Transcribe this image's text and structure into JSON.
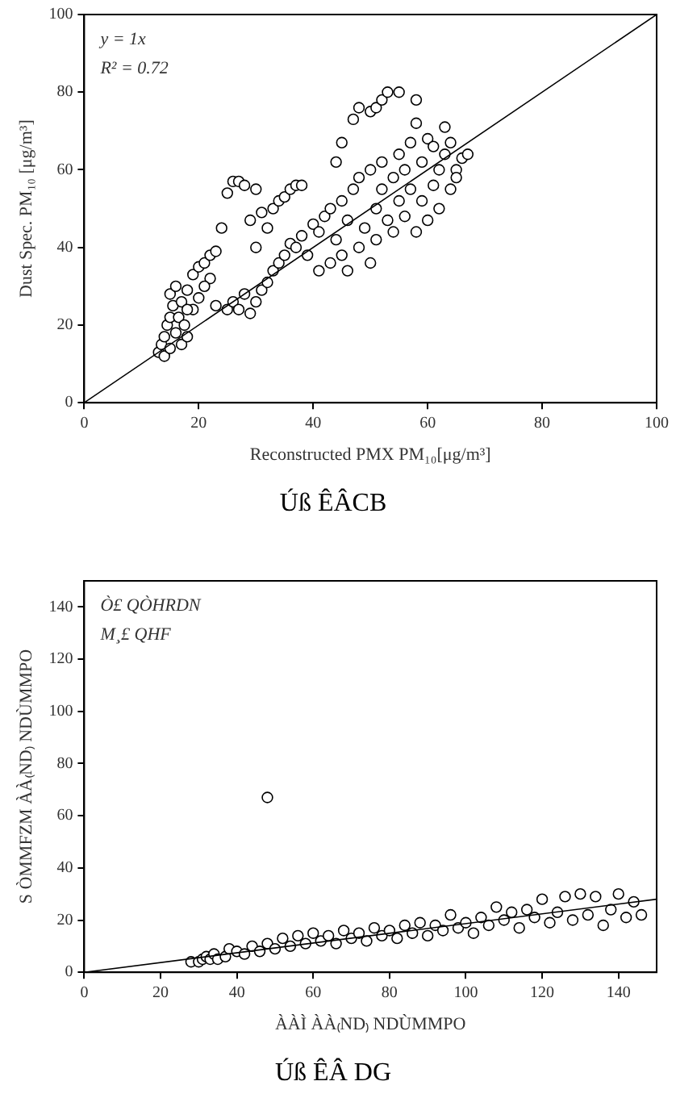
{
  "chart_data": [
    {
      "type": "scatter",
      "title": "Úß ÊÂCB",
      "xlabel": "Reconstructed PMX PM₁₀[μg/m³]",
      "ylabel": "Dust Spec. PM₁₀ [μg/m³]",
      "annotations": [
        "y = 1x",
        "R² = 0.72"
      ],
      "xlim": [
        0,
        100
      ],
      "ylim": [
        0,
        100
      ],
      "xticks": [
        0,
        20,
        40,
        60,
        80,
        100
      ],
      "yticks": [
        0,
        20,
        40,
        60,
        80,
        100
      ],
      "grid": false,
      "legend": false,
      "marker": "circle",
      "series": [
        {
          "type": "scatter",
          "color": "#000000",
          "x": [
            13,
            13.5,
            14,
            14,
            14.5,
            15,
            15,
            15.5,
            15,
            16,
            16,
            16.5,
            17,
            17,
            17.5,
            18,
            18,
            19,
            19,
            20,
            21,
            22,
            23,
            22,
            21,
            20,
            18,
            23,
            25,
            26,
            27,
            28,
            29,
            30,
            31,
            32,
            33,
            34,
            35,
            36,
            37,
            38,
            39,
            40,
            41,
            41,
            42,
            43,
            43,
            44,
            45,
            45,
            46,
            46,
            47,
            48,
            48,
            49,
            50,
            50,
            51,
            51,
            52,
            52,
            53,
            54,
            54,
            55,
            55,
            56,
            56,
            57,
            57,
            58,
            58,
            59,
            59,
            60,
            60,
            61,
            62,
            62,
            63,
            63,
            64,
            64,
            65,
            66,
            67,
            65,
            61,
            24,
            25,
            26,
            27,
            28,
            29,
            30,
            30,
            31,
            32,
            33,
            34,
            35,
            36,
            37,
            38,
            44,
            45,
            47,
            48,
            50,
            51,
            52,
            53,
            55,
            58
          ],
          "values": [
            13,
            15,
            12,
            17,
            20,
            14,
            22,
            25,
            28,
            30,
            18,
            22,
            15,
            26,
            20,
            17,
            29,
            24,
            33,
            35,
            36,
            38,
            39,
            32,
            30,
            27,
            24,
            25,
            24,
            26,
            24,
            28,
            23,
            26,
            29,
            31,
            34,
            36,
            38,
            41,
            40,
            43,
            38,
            46,
            44,
            34,
            48,
            36,
            50,
            42,
            38,
            52,
            34,
            47,
            55,
            40,
            58,
            45,
            36,
            60,
            50,
            42,
            55,
            62,
            47,
            58,
            44,
            52,
            64,
            48,
            60,
            67,
            55,
            44,
            72,
            52,
            62,
            47,
            68,
            56,
            60,
            50,
            64,
            71,
            55,
            67,
            60,
            63,
            64,
            58,
            66,
            45,
            54,
            57,
            57,
            56,
            47,
            55,
            40,
            49,
            45,
            50,
            52,
            53,
            55,
            56,
            56,
            62,
            67,
            73,
            76,
            75,
            76,
            78,
            80,
            80,
            78
          ]
        },
        {
          "type": "line",
          "color": "#000000",
          "x": [
            0,
            100
          ],
          "values": [
            0,
            100
          ],
          "marker": "none"
        }
      ]
    },
    {
      "type": "scatter",
      "title": "Úß ÊÂ DG",
      "xlabel": "ÀÀÌ ÀÀ₍ND₎ NDÙMMPO",
      "ylabel": "S ÒMMFZM ÀÀ₍ND₎ NDÙMMPO",
      "annotations": [
        "Ò£ QÒHRDN",
        "M¸£ QHF"
      ],
      "xlim": [
        0,
        150
      ],
      "ylim": [
        0,
        150
      ],
      "xticks": [
        0,
        20,
        40,
        60,
        80,
        100,
        120,
        140
      ],
      "yticks": [
        0,
        20,
        40,
        60,
        80,
        100,
        120,
        140
      ],
      "grid": false,
      "legend": false,
      "marker": "circle",
      "series": [
        {
          "type": "scatter",
          "color": "#000000",
          "x": [
            28,
            30,
            31,
            32,
            33,
            34,
            35,
            37,
            38,
            40,
            42,
            44,
            46,
            48,
            50,
            52,
            54,
            56,
            58,
            60,
            62,
            64,
            66,
            68,
            70,
            72,
            74,
            76,
            78,
            80,
            82,
            84,
            86,
            88,
            90,
            92,
            94,
            96,
            98,
            100,
            102,
            104,
            106,
            108,
            110,
            112,
            114,
            116,
            118,
            120,
            122,
            124,
            126,
            128,
            130,
            132,
            134,
            136,
            138,
            140,
            142,
            144,
            146,
            48
          ],
          "values": [
            4,
            4,
            5,
            6,
            5,
            7,
            5,
            6,
            9,
            8,
            7,
            10,
            8,
            11,
            9,
            13,
            10,
            14,
            11,
            15,
            12,
            14,
            11,
            16,
            13,
            15,
            12,
            17,
            14,
            16,
            13,
            18,
            15,
            19,
            14,
            18,
            16,
            22,
            17,
            19,
            15,
            21,
            18,
            25,
            20,
            23,
            17,
            24,
            21,
            28,
            19,
            23,
            29,
            20,
            30,
            22,
            29,
            18,
            24,
            30,
            21,
            27,
            22,
            67
          ]
        },
        {
          "type": "line",
          "color": "#000000",
          "x": [
            0,
            150
          ],
          "values": [
            0,
            28
          ],
          "marker": "none"
        }
      ]
    }
  ]
}
